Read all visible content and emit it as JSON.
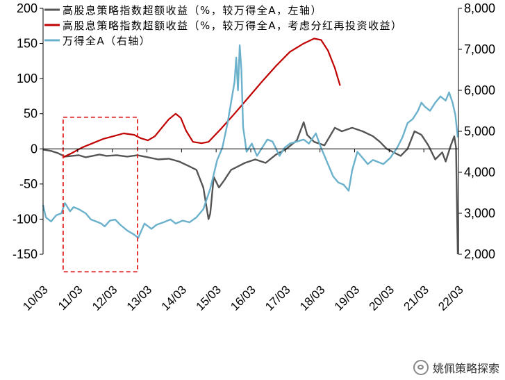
{
  "chart_data": {
    "type": "line",
    "y_left": {
      "ticks": [
        -150,
        -100,
        -50,
        0,
        50,
        100,
        150,
        200
      ],
      "lim": [
        -150,
        200
      ]
    },
    "y_right": {
      "ticks": [
        "2,000",
        "3,000",
        "4,000",
        "5,000",
        "6,000",
        "7,000",
        "8,000"
      ],
      "lim": [
        2000,
        8000
      ]
    },
    "x_ticks": [
      "10/03",
      "11/03",
      "12/03",
      "13/03",
      "14/03",
      "15/03",
      "16/03",
      "17/03",
      "18/03",
      "19/03",
      "20/03",
      "21/03",
      "22/03"
    ],
    "x_range": [
      2010.17,
      2022.17
    ],
    "highlight_box": {
      "x": [
        2010.75,
        2012.9
      ],
      "y_left": [
        -175,
        45
      ],
      "style": "dashed",
      "color": "#e02020"
    },
    "series": [
      {
        "name": "高股息策略指数超额收益（%，较万得全A，左轴）",
        "axis": "left",
        "color": "#555555",
        "points": [
          [
            2010.17,
            -1
          ],
          [
            2010.4,
            -3
          ],
          [
            2010.6,
            -6
          ],
          [
            2010.8,
            -11
          ],
          [
            2011.0,
            -10
          ],
          [
            2011.2,
            -9
          ],
          [
            2011.4,
            -12
          ],
          [
            2011.6,
            -10
          ],
          [
            2011.8,
            -8
          ],
          [
            2012.0,
            -10
          ],
          [
            2012.3,
            -9
          ],
          [
            2012.6,
            -11
          ],
          [
            2012.9,
            -9
          ],
          [
            2013.2,
            -12
          ],
          [
            2013.5,
            -15
          ],
          [
            2013.8,
            -14
          ],
          [
            2014.1,
            -18
          ],
          [
            2014.4,
            -25
          ],
          [
            2014.6,
            -30
          ],
          [
            2014.8,
            -55
          ],
          [
            2014.95,
            -100
          ],
          [
            2015.0,
            -92
          ],
          [
            2015.1,
            -40
          ],
          [
            2015.25,
            -55
          ],
          [
            2015.4,
            -45
          ],
          [
            2015.6,
            -30
          ],
          [
            2015.8,
            -25
          ],
          [
            2016.0,
            -20
          ],
          [
            2016.3,
            -15
          ],
          [
            2016.6,
            -20
          ],
          [
            2016.9,
            -8
          ],
          [
            2017.2,
            0
          ],
          [
            2017.5,
            12
          ],
          [
            2017.7,
            38
          ],
          [
            2017.8,
            20
          ],
          [
            2018.0,
            10
          ],
          [
            2018.3,
            5
          ],
          [
            2018.6,
            30
          ],
          [
            2018.8,
            25
          ],
          [
            2019.1,
            30
          ],
          [
            2019.4,
            25
          ],
          [
            2019.7,
            18
          ],
          [
            2019.9,
            10
          ],
          [
            2020.1,
            0
          ],
          [
            2020.3,
            -5
          ],
          [
            2020.5,
            -10
          ],
          [
            2020.7,
            0
          ],
          [
            2020.9,
            25
          ],
          [
            2021.1,
            20
          ],
          [
            2021.3,
            5
          ],
          [
            2021.5,
            -15
          ],
          [
            2021.7,
            -5
          ],
          [
            2021.8,
            -18
          ],
          [
            2021.95,
            5
          ],
          [
            2022.05,
            18
          ],
          [
            2022.1,
            2
          ],
          [
            2022.15,
            -150
          ]
        ]
      },
      {
        "name": "高股息策略指数超额收益（%，较万得全A，考虑分红再投资收益）",
        "axis": "left",
        "color": "#c00000",
        "points": [
          [
            2010.75,
            -12
          ],
          [
            2011.0,
            -6
          ],
          [
            2011.3,
            2
          ],
          [
            2011.6,
            8
          ],
          [
            2011.9,
            14
          ],
          [
            2012.2,
            18
          ],
          [
            2012.5,
            22
          ],
          [
            2012.8,
            20
          ],
          [
            2013.0,
            15
          ],
          [
            2013.2,
            12
          ],
          [
            2013.4,
            18
          ],
          [
            2013.6,
            30
          ],
          [
            2013.8,
            42
          ],
          [
            2014.0,
            50
          ],
          [
            2014.15,
            44
          ],
          [
            2014.3,
            26
          ],
          [
            2014.5,
            10
          ],
          [
            2014.75,
            8
          ],
          [
            2014.95,
            10
          ],
          [
            2015.3,
            28
          ],
          [
            2015.7,
            50
          ],
          [
            2016.1,
            73
          ],
          [
            2016.5,
            96
          ],
          [
            2016.9,
            118
          ],
          [
            2017.3,
            138
          ],
          [
            2017.7,
            150
          ],
          [
            2018.0,
            157
          ],
          [
            2018.2,
            155
          ],
          [
            2018.4,
            140
          ],
          [
            2018.6,
            115
          ],
          [
            2018.75,
            90
          ]
        ]
      },
      {
        "name": "万得全A（右轴）",
        "axis": "right",
        "color": "#6bb1cc",
        "points": [
          [
            2010.17,
            3200
          ],
          [
            2010.25,
            2900
          ],
          [
            2010.4,
            2800
          ],
          [
            2010.55,
            2950
          ],
          [
            2010.7,
            3000
          ],
          [
            2010.8,
            3250
          ],
          [
            2010.95,
            3050
          ],
          [
            2011.05,
            3150
          ],
          [
            2011.2,
            3100
          ],
          [
            2011.4,
            3000
          ],
          [
            2011.55,
            2850
          ],
          [
            2011.7,
            2800
          ],
          [
            2011.85,
            2750
          ],
          [
            2011.95,
            2680
          ],
          [
            2012.1,
            2820
          ],
          [
            2012.25,
            2850
          ],
          [
            2012.4,
            2720
          ],
          [
            2012.6,
            2580
          ],
          [
            2012.8,
            2480
          ],
          [
            2012.92,
            2400
          ],
          [
            2013.1,
            2750
          ],
          [
            2013.3,
            2620
          ],
          [
            2013.45,
            2720
          ],
          [
            2013.65,
            2780
          ],
          [
            2013.85,
            2850
          ],
          [
            2014.0,
            2750
          ],
          [
            2014.2,
            2820
          ],
          [
            2014.4,
            2780
          ],
          [
            2014.6,
            2900
          ],
          [
            2014.8,
            3100
          ],
          [
            2015.0,
            3600
          ],
          [
            2015.2,
            4300
          ],
          [
            2015.35,
            4600
          ],
          [
            2015.5,
            5200
          ],
          [
            2015.62,
            5800
          ],
          [
            2015.7,
            6200
          ],
          [
            2015.75,
            6800
          ],
          [
            2015.8,
            6000
          ],
          [
            2015.85,
            7100
          ],
          [
            2015.9,
            6500
          ],
          [
            2015.95,
            5100
          ],
          [
            2016.05,
            4500
          ],
          [
            2016.2,
            4700
          ],
          [
            2016.35,
            4400
          ],
          [
            2016.5,
            4600
          ],
          [
            2016.65,
            4800
          ],
          [
            2016.8,
            4750
          ],
          [
            2017.0,
            4400
          ],
          [
            2017.15,
            4600
          ],
          [
            2017.3,
            4700
          ],
          [
            2017.5,
            4750
          ],
          [
            2017.7,
            4800
          ],
          [
            2017.85,
            4700
          ],
          [
            2018.05,
            4950
          ],
          [
            2018.2,
            4600
          ],
          [
            2018.4,
            4200
          ],
          [
            2018.55,
            3900
          ],
          [
            2018.7,
            3750
          ],
          [
            2018.85,
            3700
          ],
          [
            2019.0,
            3550
          ],
          [
            2019.1,
            4050
          ],
          [
            2019.25,
            4500
          ],
          [
            2019.4,
            4350
          ],
          [
            2019.55,
            4200
          ],
          [
            2019.7,
            4300
          ],
          [
            2019.85,
            4250
          ],
          [
            2020.0,
            4200
          ],
          [
            2020.2,
            4350
          ],
          [
            2020.4,
            4600
          ],
          [
            2020.55,
            4850
          ],
          [
            2020.7,
            5200
          ],
          [
            2020.85,
            5300
          ],
          [
            2021.0,
            5500
          ],
          [
            2021.1,
            5700
          ],
          [
            2021.2,
            5600
          ],
          [
            2021.35,
            5500
          ],
          [
            2021.5,
            5700
          ],
          [
            2021.65,
            5850
          ],
          [
            2021.8,
            5750
          ],
          [
            2021.9,
            5950
          ],
          [
            2022.0,
            5700
          ],
          [
            2022.08,
            5400
          ],
          [
            2022.15,
            4850
          ]
        ]
      }
    ],
    "legend_position": "top-left"
  },
  "watermark": {
    "text": "姚佩策略探索"
  }
}
